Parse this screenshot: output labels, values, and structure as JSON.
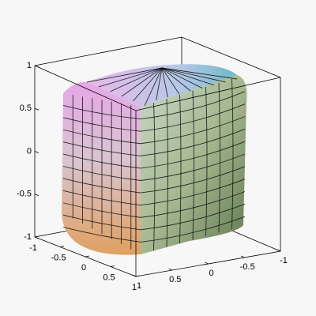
{
  "chart_data": {
    "type": "surface3d",
    "xlim": [
      -1,
      1
    ],
    "xticks": [
      -1,
      -0.5,
      0,
      0.5,
      1
    ],
    "ylim": [
      -1,
      1
    ],
    "yticks": [
      1,
      0.5,
      0,
      -0.5,
      -1
    ],
    "zlim": [
      -1,
      1
    ],
    "zticks": [
      -1,
      -0.5,
      0,
      0.5,
      1
    ]
  }
}
